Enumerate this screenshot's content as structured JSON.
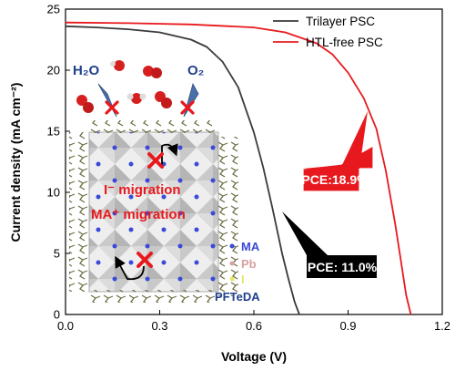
{
  "chart_data": {
    "type": "line",
    "xlabel": "Voltage (V)",
    "ylabel": "Current density (mA cm⁻²)",
    "xlim": [
      0.0,
      1.2
    ],
    "ylim": [
      0,
      25
    ],
    "x_ticks": [
      0.0,
      0.3,
      0.6,
      0.9,
      1.2
    ],
    "x_tick_labels": [
      "0.0",
      "0.3",
      "0.6",
      "0.9",
      "1.2"
    ],
    "y_ticks": [
      0,
      5,
      10,
      15,
      20,
      25
    ],
    "y_tick_labels": [
      "0",
      "5",
      "10",
      "15",
      "20",
      "25"
    ],
    "grid": false,
    "legend_position": "top-right",
    "series": [
      {
        "name": "Trilayer PSC",
        "color": "#3a3a3a",
        "x": [
          0.0,
          0.1,
          0.2,
          0.3,
          0.4,
          0.45,
          0.5,
          0.55,
          0.6,
          0.63,
          0.66,
          0.69,
          0.71,
          0.73,
          0.745
        ],
        "y": [
          23.6,
          23.5,
          23.35,
          23.1,
          22.5,
          21.9,
          20.7,
          18.6,
          14.9,
          12.0,
          8.6,
          5.0,
          2.9,
          1.0,
          0.0
        ]
      },
      {
        "name": "HTL-free PSC",
        "color": "#e8191e",
        "x": [
          0.0,
          0.2,
          0.4,
          0.6,
          0.7,
          0.8,
          0.85,
          0.9,
          0.95,
          0.99,
          1.02,
          1.05,
          1.07,
          1.085,
          1.1
        ],
        "y": [
          23.9,
          23.85,
          23.75,
          23.5,
          23.1,
          22.2,
          21.3,
          19.8,
          17.7,
          15.2,
          11.8,
          7.4,
          4.1,
          1.6,
          0.0
        ]
      }
    ],
    "annotations": [
      {
        "text": "PCE:18.9%",
        "style": "red-box",
        "color": "#e8191e"
      },
      {
        "text": "PCE: 11.0%",
        "style": "black-box",
        "color": "#000000"
      }
    ],
    "inset": {
      "labels": {
        "water": "H₂O",
        "oxygen": "O₂",
        "iodide_migration": "I⁻ migration",
        "ma_migration": "MA⁺ migration",
        "ma": "MA",
        "pb": "Pb",
        "i": "I",
        "pfteda": "PFTeDA"
      },
      "colors": {
        "blocked": "#e8191e",
        "ma_dot": "#3a49d8",
        "pb_dot": "#d9a1a1",
        "i_dot": "#e6e66b",
        "text_blue": "#1f3f8f",
        "text_red": "#e8191e"
      }
    }
  }
}
